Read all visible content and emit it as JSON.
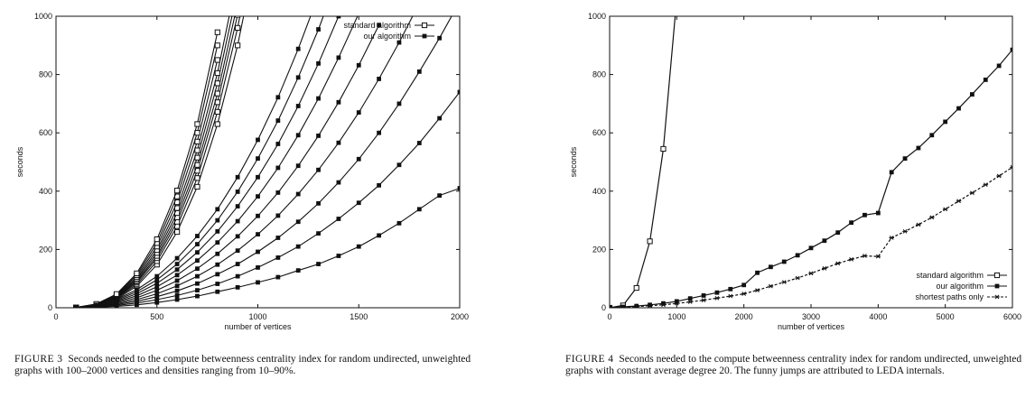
{
  "figures": [
    {
      "label": "FIGURE 3",
      "caption": "Seconds needed to the compute betweenness centrality index for random undirected, unweighted graphs with 100–2000 vertices and densities ranging from 10–90%."
    },
    {
      "label": "FIGURE 4",
      "caption": "Seconds needed to the compute betweenness centrality index for random undirected, unweighted graphs with constant average degree 20. The funny jumps are attributed to LEDA internals."
    }
  ],
  "chart_data": [
    {
      "type": "line",
      "title": "",
      "xlabel": "number of vertices",
      "ylabel": "seconds",
      "xlim": [
        0,
        2000
      ],
      "ylim": [
        0,
        1000
      ],
      "xticks": [
        0,
        500,
        1000,
        1500,
        2000
      ],
      "yticks": [
        0,
        200,
        400,
        600,
        800,
        1000
      ],
      "grid": false,
      "legend_position": "top-right",
      "legend": [
        {
          "name": "standard algorithm",
          "marker": "open-square"
        },
        {
          "name": "our algorithm",
          "marker": "filled-square"
        }
      ],
      "series": [
        {
          "name": "standard algorithm (10%)",
          "marker": "open-square",
          "x": [
            100,
            200,
            300,
            400,
            500,
            600,
            700,
            800,
            900,
            1000
          ],
          "y": [
            1,
            8,
            30,
            74,
            148,
            260,
            415,
            630,
            900,
            1240
          ]
        },
        {
          "name": "standard algorithm (20%)",
          "marker": "open-square",
          "x": [
            100,
            200,
            300,
            400,
            500,
            600,
            700,
            800,
            900,
            1000
          ],
          "y": [
            1,
            9,
            33,
            80,
            160,
            280,
            445,
            672,
            960,
            1320
          ]
        },
        {
          "name": "standard algorithm (30%)",
          "marker": "open-square",
          "x": [
            100,
            200,
            300,
            400,
            500,
            600,
            700,
            800,
            900,
            1000
          ],
          "y": [
            1,
            10,
            35,
            86,
            170,
            295,
            470,
            705,
            1005,
            1380
          ]
        },
        {
          "name": "standard algorithm (40%)",
          "marker": "open-square",
          "x": [
            100,
            200,
            300,
            400,
            500,
            600,
            700,
            800,
            900
          ],
          "y": [
            1,
            10,
            37,
            90,
            178,
            310,
            490,
            735,
            1045
          ]
        },
        {
          "name": "standard algorithm (50%)",
          "marker": "open-square",
          "x": [
            100,
            200,
            300,
            400,
            500,
            600,
            700,
            800,
            900
          ],
          "y": [
            1,
            11,
            39,
            95,
            188,
            325,
            515,
            770,
            1090
          ]
        },
        {
          "name": "standard algorithm (60%)",
          "marker": "open-square",
          "x": [
            100,
            200,
            300,
            400,
            500,
            600,
            700,
            800,
            900
          ],
          "y": [
            1,
            11,
            41,
            100,
            198,
            342,
            540,
            805,
            1140
          ]
        },
        {
          "name": "standard algorithm (70%)",
          "marker": "open-square",
          "x": [
            100,
            200,
            300,
            400,
            500,
            600,
            700,
            800
          ],
          "y": [
            1,
            12,
            43,
            106,
            210,
            362,
            570,
            850
          ]
        },
        {
          "name": "standard algorithm (80%)",
          "marker": "open-square",
          "x": [
            100,
            200,
            300,
            400,
            500,
            600,
            700,
            800
          ],
          "y": [
            1,
            12,
            45,
            112,
            222,
            382,
            600,
            900
          ]
        },
        {
          "name": "standard algorithm (90%)",
          "marker": "open-square",
          "x": [
            100,
            200,
            300,
            400,
            500,
            600,
            700,
            800
          ],
          "y": [
            1,
            13,
            47,
            118,
            235,
            402,
            630,
            945
          ]
        },
        {
          "name": "our algorithm (10%)",
          "marker": "filled-square",
          "x": [
            100,
            200,
            300,
            400,
            500,
            600,
            700,
            800,
            900,
            1000,
            1100,
            1200,
            1300,
            1400,
            1500,
            1600,
            1700,
            1800,
            1900,
            2000
          ],
          "y": [
            0,
            2,
            5,
            10,
            18,
            28,
            40,
            55,
            70,
            87,
            105,
            128,
            150,
            178,
            210,
            248,
            290,
            338,
            385,
            410
          ]
        },
        {
          "name": "our algorithm (20%)",
          "marker": "filled-square",
          "x": [
            100,
            200,
            300,
            400,
            500,
            600,
            700,
            800,
            900,
            1000,
            1100,
            1200,
            1300,
            1400,
            1500,
            1600,
            1700,
            1800,
            1900,
            2000
          ],
          "y": [
            0,
            3,
            8,
            16,
            28,
            42,
            60,
            82,
            108,
            138,
            172,
            210,
            255,
            305,
            360,
            420,
            490,
            565,
            650,
            740
          ]
        },
        {
          "name": "our algorithm (30%)",
          "marker": "filled-square",
          "x": [
            100,
            200,
            300,
            400,
            500,
            600,
            700,
            800,
            900,
            1000,
            1100,
            1200,
            1300,
            1400,
            1500,
            1600,
            1700,
            1800,
            1900,
            2000
          ],
          "y": [
            0,
            4,
            11,
            22,
            38,
            58,
            83,
            115,
            150,
            192,
            240,
            295,
            358,
            430,
            510,
            600,
            700,
            810,
            925,
            1050
          ]
        },
        {
          "name": "our algorithm (40%)",
          "marker": "filled-square",
          "x": [
            100,
            200,
            300,
            400,
            500,
            600,
            700,
            800,
            900,
            1000,
            1100,
            1200,
            1300,
            1400,
            1500,
            1600,
            1700,
            1800
          ],
          "y": [
            0,
            5,
            14,
            28,
            48,
            75,
            108,
            148,
            196,
            252,
            316,
            390,
            473,
            566,
            670,
            785,
            910,
            1045
          ]
        },
        {
          "name": "our algorithm (50%)",
          "marker": "filled-square",
          "x": [
            100,
            200,
            300,
            400,
            500,
            600,
            700,
            800,
            900,
            1000,
            1100,
            1200,
            1300,
            1400,
            1500,
            1600
          ],
          "y": [
            0,
            6,
            17,
            34,
            60,
            93,
            134,
            185,
            245,
            315,
            395,
            487,
            590,
            705,
            832,
            970
          ]
        },
        {
          "name": "our algorithm (60%)",
          "marker": "filled-square",
          "x": [
            100,
            200,
            300,
            400,
            500,
            600,
            700,
            800,
            900,
            1000,
            1100,
            1200,
            1300,
            1400,
            1500
          ],
          "y": [
            1,
            7,
            20,
            41,
            72,
            112,
            162,
            224,
            297,
            382,
            480,
            592,
            718,
            858,
            1010
          ]
        },
        {
          "name": "our algorithm (70%)",
          "marker": "filled-square",
          "x": [
            100,
            200,
            300,
            400,
            500,
            600,
            700,
            800,
            900,
            1000,
            1100,
            1200,
            1300,
            1400
          ],
          "y": [
            1,
            8,
            23,
            48,
            84,
            131,
            190,
            262,
            348,
            448,
            562,
            692,
            838,
            1000
          ]
        },
        {
          "name": "our algorithm (80%)",
          "marker": "filled-square",
          "x": [
            100,
            200,
            300,
            400,
            500,
            600,
            700,
            800,
            900,
            1000,
            1100,
            1200,
            1300,
            1400
          ],
          "y": [
            1,
            9,
            26,
            55,
            96,
            150,
            218,
            300,
            398,
            512,
            642,
            790,
            955,
            1140
          ]
        },
        {
          "name": "our algorithm (90%)",
          "marker": "filled-square",
          "x": [
            100,
            200,
            300,
            400,
            500,
            600,
            700,
            800,
            900,
            1000,
            1100,
            1200,
            1300
          ],
          "y": [
            1,
            10,
            29,
            62,
            108,
            170,
            246,
            338,
            448,
            576,
            722,
            888,
            1072
          ]
        }
      ]
    },
    {
      "type": "line",
      "title": "",
      "xlabel": "number of vertices",
      "ylabel": "seconds",
      "xlim": [
        0,
        6000
      ],
      "ylim": [
        0,
        1000
      ],
      "xticks": [
        0,
        1000,
        2000,
        3000,
        4000,
        5000,
        6000
      ],
      "yticks": [
        0,
        200,
        400,
        600,
        800,
        1000
      ],
      "grid": false,
      "legend_position": "bottom-right",
      "legend": [
        {
          "name": "standard algorithm",
          "marker": "open-square",
          "dash": "solid"
        },
        {
          "name": "our algorithm",
          "marker": "filled-square",
          "dash": "solid"
        },
        {
          "name": "shortest paths only",
          "marker": "star",
          "dash": "dashed"
        }
      ],
      "series": [
        {
          "name": "standard algorithm",
          "marker": "open-square",
          "dash": "solid",
          "x": [
            0,
            200,
            400,
            600,
            800,
            1000
          ],
          "y": [
            0,
            8,
            68,
            228,
            545,
            1060
          ]
        },
        {
          "name": "our algorithm",
          "marker": "filled-square",
          "dash": "solid",
          "x": [
            0,
            200,
            400,
            600,
            800,
            1000,
            1200,
            1400,
            1600,
            1800,
            2000,
            2200,
            2400,
            2600,
            2800,
            3000,
            3200,
            3400,
            3600,
            3800,
            4000,
            4200,
            4400,
            4600,
            4800,
            5000,
            5200,
            5400,
            5600,
            5800,
            6000
          ],
          "y": [
            0,
            3,
            6,
            10,
            15,
            22,
            32,
            42,
            52,
            64,
            78,
            120,
            140,
            158,
            180,
            205,
            230,
            258,
            292,
            318,
            325,
            465,
            512,
            548,
            592,
            638,
            684,
            732,
            782,
            830,
            885
          ]
        },
        {
          "name": "shortest paths only",
          "marker": "star",
          "dash": "dashed",
          "x": [
            0,
            200,
            400,
            600,
            800,
            1000,
            1200,
            1400,
            1600,
            1800,
            2000,
            2200,
            2400,
            2600,
            2800,
            3000,
            3200,
            3400,
            3600,
            3800,
            4000,
            4200,
            4400,
            4600,
            4800,
            5000,
            5200,
            5400,
            5600,
            5800,
            6000
          ],
          "y": [
            0,
            2,
            4,
            7,
            10,
            15,
            20,
            26,
            33,
            40,
            48,
            60,
            74,
            88,
            102,
            118,
            135,
            152,
            166,
            178,
            176,
            240,
            262,
            285,
            310,
            338,
            366,
            394,
            422,
            452,
            482
          ]
        }
      ]
    }
  ]
}
